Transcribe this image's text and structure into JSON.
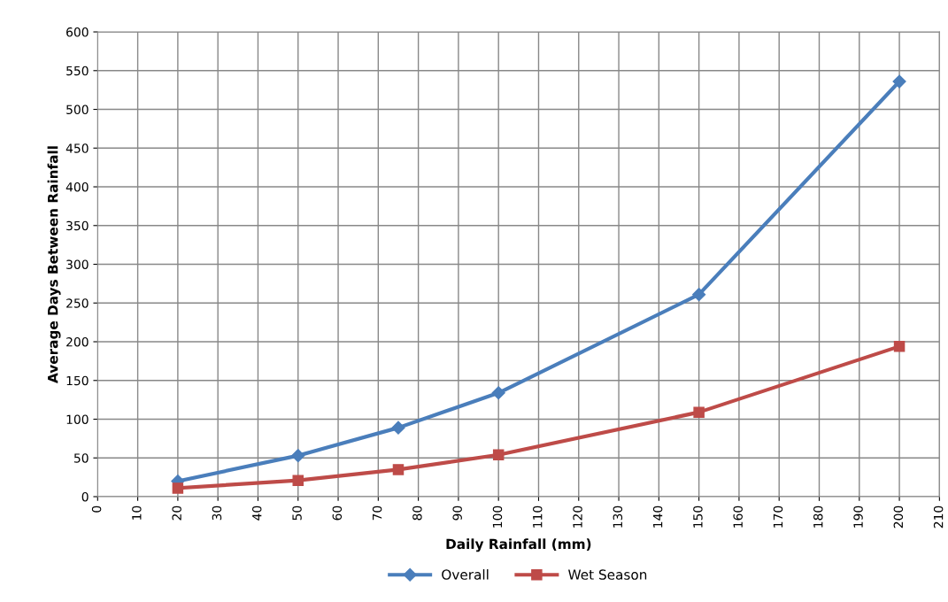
{
  "chart_data": {
    "type": "line",
    "xlabel": "Daily Rainfall (mm)",
    "ylabel": "Average Days Between Rainfall",
    "x": [
      20,
      50,
      75,
      100,
      150,
      200
    ],
    "series": [
      {
        "name": "Overall",
        "color": "#4a7ebb",
        "marker": "diamond",
        "values": [
          20,
          53,
          89,
          134,
          261,
          536
        ]
      },
      {
        "name": "Wet Season",
        "color": "#be4b48",
        "marker": "square",
        "values": [
          11,
          21,
          35,
          54,
          109,
          194
        ]
      }
    ],
    "xlim": [
      0,
      210
    ],
    "xticks": [
      0,
      10,
      20,
      30,
      40,
      50,
      60,
      70,
      80,
      90,
      100,
      110,
      120,
      130,
      140,
      150,
      160,
      170,
      180,
      190,
      200,
      210
    ],
    "ylim": [
      0,
      600
    ],
    "yticks": [
      0,
      50,
      100,
      150,
      200,
      250,
      300,
      350,
      400,
      450,
      500,
      550,
      600
    ],
    "grid": true,
    "legend": "bottom",
    "line_style": "solid"
  }
}
